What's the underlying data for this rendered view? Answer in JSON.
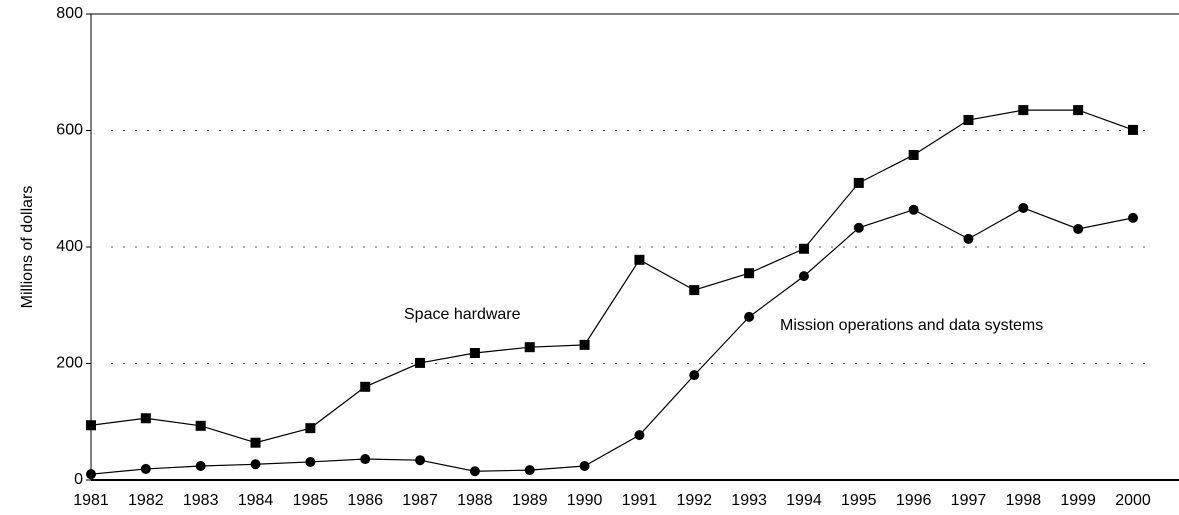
{
  "chart_data": {
    "type": "line",
    "y_label": "Millions of dollars",
    "categories": [
      "1981",
      "1982",
      "1983",
      "1984",
      "1985",
      "1986",
      "1987",
      "1988",
      "1989",
      "1990",
      "1991",
      "1992",
      "1993",
      "1994",
      "1995",
      "1996",
      "1997",
      "1998",
      "1999",
      "2000"
    ],
    "series": [
      {
        "name": "Space hardware",
        "color": "#000000",
        "marker": "square",
        "values": [
          94,
          106,
          93,
          64,
          89,
          160,
          201,
          218,
          228,
          232,
          378,
          326,
          355,
          397,
          510,
          558,
          618,
          635,
          635,
          601
        ]
      },
      {
        "name": "Mission operations and data systems",
        "color": "#000000",
        "marker": "circle",
        "values": [
          10,
          19,
          24,
          27,
          31,
          36,
          34,
          15,
          17,
          24,
          77,
          180,
          280,
          350,
          433,
          464,
          414,
          467,
          431,
          450
        ]
      }
    ],
    "ylim": [
      0,
      800
    ],
    "yticks": [
      0,
      200,
      400,
      600,
      800
    ],
    "grid": true
  }
}
